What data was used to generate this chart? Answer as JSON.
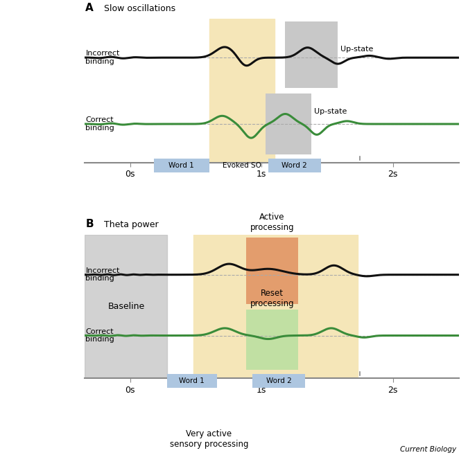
{
  "fig_width": 6.75,
  "fig_height": 6.83,
  "dpi": 100,
  "background_color": "#ffffff",
  "xmin": -0.35,
  "xmax": 2.5,
  "xticks": [
    0,
    1,
    2
  ],
  "xtick_labels": [
    "0s",
    "1s",
    "2s"
  ],
  "word_color": "#adc6e0",
  "evoked_so_color": "#f5e6b8",
  "upstate_gray_color": "#c8c8c8",
  "black_wave_color": "#111111",
  "green_wave_color": "#3a8c3a",
  "baseline_gray_color": "#c0c0c0",
  "yellow_band_color": "#f5e6b8",
  "orange_band_color": "#e09060",
  "green_band_color": "#b8e0a0",
  "dashed_color": "#aaaaaa",
  "axis_color": "#888888"
}
